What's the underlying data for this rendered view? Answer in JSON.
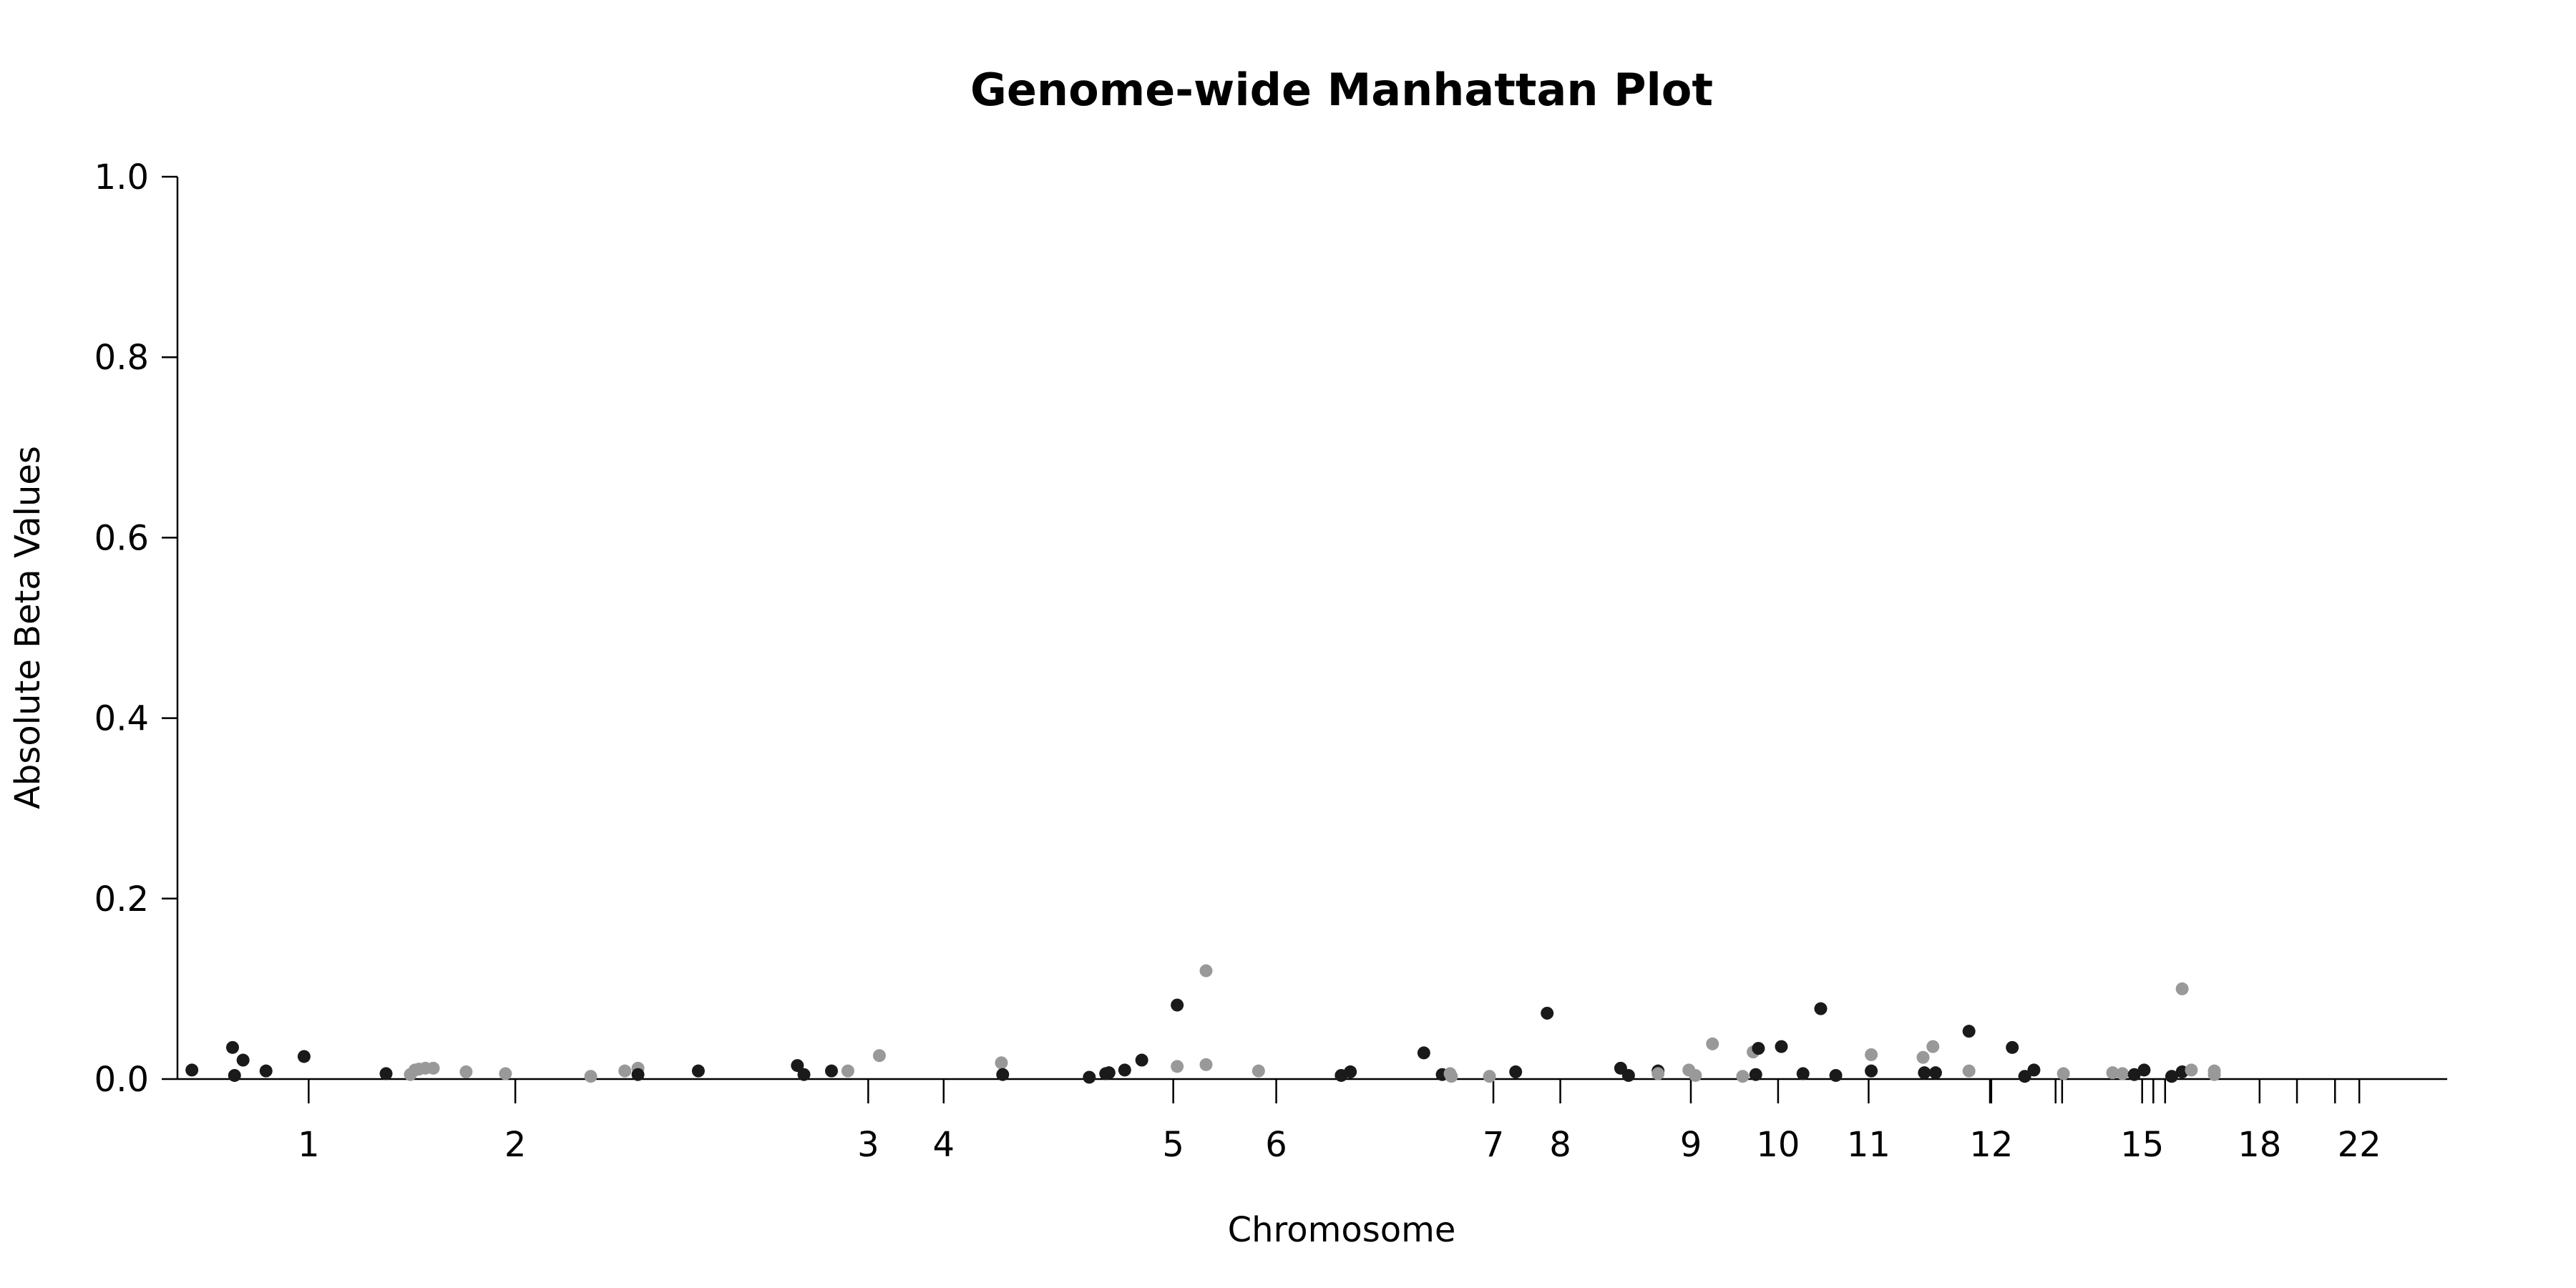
{
  "chart_data": {
    "type": "scatter",
    "title": "Genome-wide Manhattan Plot",
    "xlabel": "Chromosome",
    "ylabel": "Absolute Beta Values",
    "ylim": [
      0,
      1.0
    ],
    "yticks": [
      "0.0",
      "0.2",
      "0.4",
      "0.6",
      "0.8",
      "1.0"
    ],
    "grid": false,
    "legend": "none",
    "colors": {
      "dark": "#1a1a1a",
      "light": "#999999",
      "axis": "#000000"
    },
    "xticks": [
      {
        "label": "1",
        "x": 1.0
      },
      {
        "label": "2",
        "x": 4.15
      },
      {
        "label": "3",
        "x": 9.53
      },
      {
        "label": "4",
        "x": 10.68
      },
      {
        "label": "5",
        "x": 14.18
      },
      {
        "label": "6",
        "x": 15.75
      },
      {
        "label": "7",
        "x": 19.06
      },
      {
        "label": "8",
        "x": 20.08
      },
      {
        "label": "9",
        "x": 22.07
      },
      {
        "label": "10",
        "x": 23.4
      },
      {
        "label": "11",
        "x": 24.78
      },
      {
        "label": "",
        "x": 26.63
      },
      {
        "label": "12",
        "x": 26.65
      },
      {
        "label": "",
        "x": 27.63
      },
      {
        "label": "",
        "x": 27.73
      },
      {
        "label": "15",
        "x": 28.95
      },
      {
        "label": "",
        "x": 29.12
      },
      {
        "label": "",
        "x": 29.3
      },
      {
        "label": "18",
        "x": 30.74
      },
      {
        "label": "",
        "x": 31.31
      },
      {
        "label": "",
        "x": 31.89
      },
      {
        "label": "22",
        "x": 32.26
      }
    ],
    "xlim": [
      -1.0,
      33.6
    ],
    "points": [
      {
        "x": -0.78,
        "y": 0.01,
        "c": "dark"
      },
      {
        "x": -0.16,
        "y": 0.035,
        "c": "dark"
      },
      {
        "x": -0.13,
        "y": 0.004,
        "c": "dark"
      },
      {
        "x": 0.0,
        "y": 0.021,
        "c": "dark"
      },
      {
        "x": 0.35,
        "y": 0.009,
        "c": "dark"
      },
      {
        "x": 0.93,
        "y": 0.025,
        "c": "dark"
      },
      {
        "x": 2.18,
        "y": 0.006,
        "c": "dark"
      },
      {
        "x": 2.55,
        "y": 0.005,
        "c": "light"
      },
      {
        "x": 2.62,
        "y": 0.01,
        "c": "light"
      },
      {
        "x": 2.68,
        "y": 0.011,
        "c": "light"
      },
      {
        "x": 2.78,
        "y": 0.012,
        "c": "light"
      },
      {
        "x": 2.9,
        "y": 0.012,
        "c": "light"
      },
      {
        "x": 3.4,
        "y": 0.008,
        "c": "light"
      },
      {
        "x": 4.0,
        "y": 0.006,
        "c": "light"
      },
      {
        "x": 5.3,
        "y": 0.003,
        "c": "light"
      },
      {
        "x": 5.82,
        "y": 0.009,
        "c": "light"
      },
      {
        "x": 6.02,
        "y": 0.012,
        "c": "light"
      },
      {
        "x": 6.02,
        "y": 0.005,
        "c": "dark"
      },
      {
        "x": 6.94,
        "y": 0.009,
        "c": "dark"
      },
      {
        "x": 8.45,
        "y": 0.015,
        "c": "dark"
      },
      {
        "x": 8.55,
        "y": 0.005,
        "c": "dark"
      },
      {
        "x": 8.97,
        "y": 0.009,
        "c": "dark"
      },
      {
        "x": 9.22,
        "y": 0.009,
        "c": "light"
      },
      {
        "x": 9.7,
        "y": 0.026,
        "c": "light"
      },
      {
        "x": 11.56,
        "y": 0.018,
        "c": "light"
      },
      {
        "x": 11.58,
        "y": 0.005,
        "c": "dark"
      },
      {
        "x": 12.9,
        "y": 0.002,
        "c": "dark"
      },
      {
        "x": 13.15,
        "y": 0.006,
        "c": "dark"
      },
      {
        "x": 13.2,
        "y": 0.007,
        "c": "dark"
      },
      {
        "x": 13.44,
        "y": 0.01,
        "c": "dark"
      },
      {
        "x": 13.7,
        "y": 0.021,
        "c": "dark"
      },
      {
        "x": 14.24,
        "y": 0.082,
        "c": "dark"
      },
      {
        "x": 14.24,
        "y": 0.014,
        "c": "light"
      },
      {
        "x": 14.68,
        "y": 0.12,
        "c": "light"
      },
      {
        "x": 14.68,
        "y": 0.016,
        "c": "light"
      },
      {
        "x": 15.48,
        "y": 0.009,
        "c": "light"
      },
      {
        "x": 16.74,
        "y": 0.004,
        "c": "dark"
      },
      {
        "x": 16.88,
        "y": 0.008,
        "c": "dark"
      },
      {
        "x": 18.0,
        "y": 0.029,
        "c": "dark"
      },
      {
        "x": 18.28,
        "y": 0.005,
        "c": "dark"
      },
      {
        "x": 18.4,
        "y": 0.006,
        "c": "light"
      },
      {
        "x": 18.42,
        "y": 0.003,
        "c": "light"
      },
      {
        "x": 19.0,
        "y": 0.003,
        "c": "light"
      },
      {
        "x": 19.4,
        "y": 0.008,
        "c": "dark"
      },
      {
        "x": 19.88,
        "y": 0.073,
        "c": "dark"
      },
      {
        "x": 21.0,
        "y": 0.012,
        "c": "dark"
      },
      {
        "x": 21.12,
        "y": 0.004,
        "c": "dark"
      },
      {
        "x": 21.57,
        "y": 0.009,
        "c": "dark"
      },
      {
        "x": 21.57,
        "y": 0.006,
        "c": "light"
      },
      {
        "x": 22.04,
        "y": 0.01,
        "c": "light"
      },
      {
        "x": 22.14,
        "y": 0.004,
        "c": "light"
      },
      {
        "x": 22.4,
        "y": 0.039,
        "c": "light"
      },
      {
        "x": 22.86,
        "y": 0.003,
        "c": "light"
      },
      {
        "x": 23.02,
        "y": 0.03,
        "c": "light"
      },
      {
        "x": 23.06,
        "y": 0.005,
        "c": "dark"
      },
      {
        "x": 23.1,
        "y": 0.034,
        "c": "dark"
      },
      {
        "x": 23.45,
        "y": 0.036,
        "c": "dark"
      },
      {
        "x": 23.78,
        "y": 0.006,
        "c": "dark"
      },
      {
        "x": 24.05,
        "y": 0.078,
        "c": "dark"
      },
      {
        "x": 24.28,
        "y": 0.004,
        "c": "dark"
      },
      {
        "x": 24.82,
        "y": 0.009,
        "c": "dark"
      },
      {
        "x": 24.82,
        "y": 0.027,
        "c": "light"
      },
      {
        "x": 25.61,
        "y": 0.024,
        "c": "light"
      },
      {
        "x": 25.63,
        "y": 0.007,
        "c": "dark"
      },
      {
        "x": 25.76,
        "y": 0.036,
        "c": "light"
      },
      {
        "x": 25.8,
        "y": 0.007,
        "c": "dark"
      },
      {
        "x": 26.31,
        "y": 0.053,
        "c": "dark"
      },
      {
        "x": 26.31,
        "y": 0.009,
        "c": "light"
      },
      {
        "x": 26.97,
        "y": 0.035,
        "c": "dark"
      },
      {
        "x": 27.16,
        "y": 0.003,
        "c": "dark"
      },
      {
        "x": 27.3,
        "y": 0.01,
        "c": "dark"
      },
      {
        "x": 27.75,
        "y": 0.006,
        "c": "light"
      },
      {
        "x": 28.5,
        "y": 0.007,
        "c": "light"
      },
      {
        "x": 28.65,
        "y": 0.006,
        "c": "light"
      },
      {
        "x": 28.83,
        "y": 0.005,
        "c": "dark"
      },
      {
        "x": 28.98,
        "y": 0.01,
        "c": "dark"
      },
      {
        "x": 29.4,
        "y": 0.003,
        "c": "dark"
      },
      {
        "x": 29.56,
        "y": 0.008,
        "c": "dark"
      },
      {
        "x": 29.56,
        "y": 0.1,
        "c": "light"
      },
      {
        "x": 29.7,
        "y": 0.01,
        "c": "light"
      },
      {
        "x": 30.05,
        "y": 0.005,
        "c": "light"
      },
      {
        "x": 30.05,
        "y": 0.009,
        "c": "light"
      }
    ]
  }
}
